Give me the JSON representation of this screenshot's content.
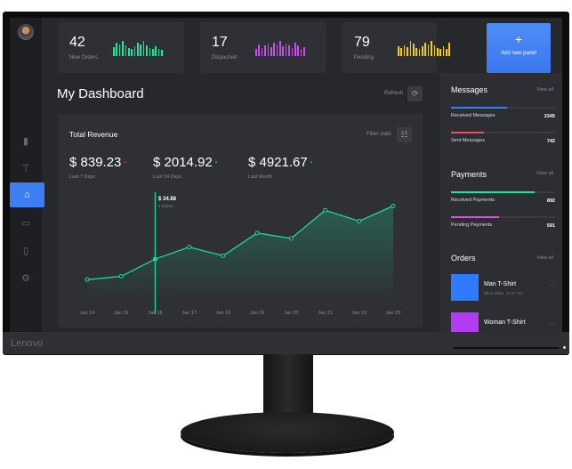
{
  "brand": "Lenovo",
  "sidebar": {
    "items": [
      {
        "icon": "bar-chart-icon"
      },
      {
        "icon": "signpost-icon"
      },
      {
        "icon": "basket-icon",
        "active": true
      },
      {
        "icon": "chat-icon"
      },
      {
        "icon": "clipboard-icon"
      },
      {
        "icon": "gear-icon"
      }
    ]
  },
  "stats": [
    {
      "value": "42",
      "label": "New Orders",
      "color": "#1fe59a",
      "bars": [
        10,
        15,
        13,
        17,
        12,
        9,
        8,
        11,
        15,
        13,
        17,
        12,
        9,
        8,
        11,
        8,
        7
      ]
    },
    {
      "value": "17",
      "label": "Dispached",
      "color": "#c84cf0",
      "bars": [
        8,
        13,
        9,
        12,
        14,
        10,
        15,
        13,
        17,
        11,
        14,
        12,
        9,
        15,
        12,
        8,
        10
      ]
    },
    {
      "value": "79",
      "label": "Pending",
      "color": "#f5cc12",
      "bars": [
        11,
        9,
        12,
        10,
        17,
        14,
        9,
        8,
        11,
        15,
        13,
        17,
        12,
        9,
        8,
        11,
        8,
        15
      ]
    }
  ],
  "add_panel": {
    "icon": "+",
    "label": "Add new panel"
  },
  "header": {
    "title": "My Dashboard",
    "refresh": "Refresh"
  },
  "revenue": {
    "title": "Total Revenue",
    "filter": "Filter stats",
    "totals": [
      {
        "value": "$ 839.23",
        "period": "Last 7 Days",
        "trend_color": "#e84545"
      },
      {
        "value": "$ 2014.92",
        "period": "Last 14 Days",
        "trend_color": "#1fe59a"
      },
      {
        "value": "$ 4921.67",
        "period": "Last Month",
        "trend_color": "#1fe59a"
      }
    ],
    "tooltip": {
      "value": "$ 34.88",
      "sub": "3 orders"
    }
  },
  "chart_data": {
    "type": "area",
    "categories": [
      "Jan 14",
      "Jan 15",
      "Jan 16",
      "Jan 17",
      "Jan 18",
      "Jan 19",
      "Jan 20",
      "Jan 21",
      "Jan 22",
      "Jan 23"
    ],
    "values": [
      36,
      39,
      55,
      66,
      58,
      79,
      74,
      100,
      90,
      104
    ],
    "ylim": [
      0,
      115
    ],
    "grid": false,
    "color": "#1fd69a",
    "highlight_index": 2
  },
  "messages": {
    "title": "Messages",
    "view_all": "View all",
    "items": [
      {
        "label": "Received Messages",
        "value": "2345",
        "fraction": 0.54,
        "color": "#3d7ef5"
      },
      {
        "label": "Sent Messages",
        "value": "742",
        "fraction": 0.32,
        "color": "#f0505a"
      }
    ]
  },
  "payments": {
    "title": "Payments",
    "view_all": "View all",
    "items": [
      {
        "label": "Received Payments",
        "value": "892",
        "fraction": 0.8,
        "color": "#1fe59a"
      },
      {
        "label": "Pending Payments",
        "value": "591",
        "fraction": 0.46,
        "color": "#e54ce0"
      }
    ]
  },
  "orders": {
    "title": "Orders",
    "view_all": "View all",
    "items": [
      {
        "name": "Man T-Shirt",
        "customer": "Elton Miller",
        "time": "12:37 AM",
        "color": "#2f7bff"
      },
      {
        "name": "Woman T-Shirt",
        "customer": "",
        "time": "",
        "color": "#b43cf0"
      }
    ]
  }
}
